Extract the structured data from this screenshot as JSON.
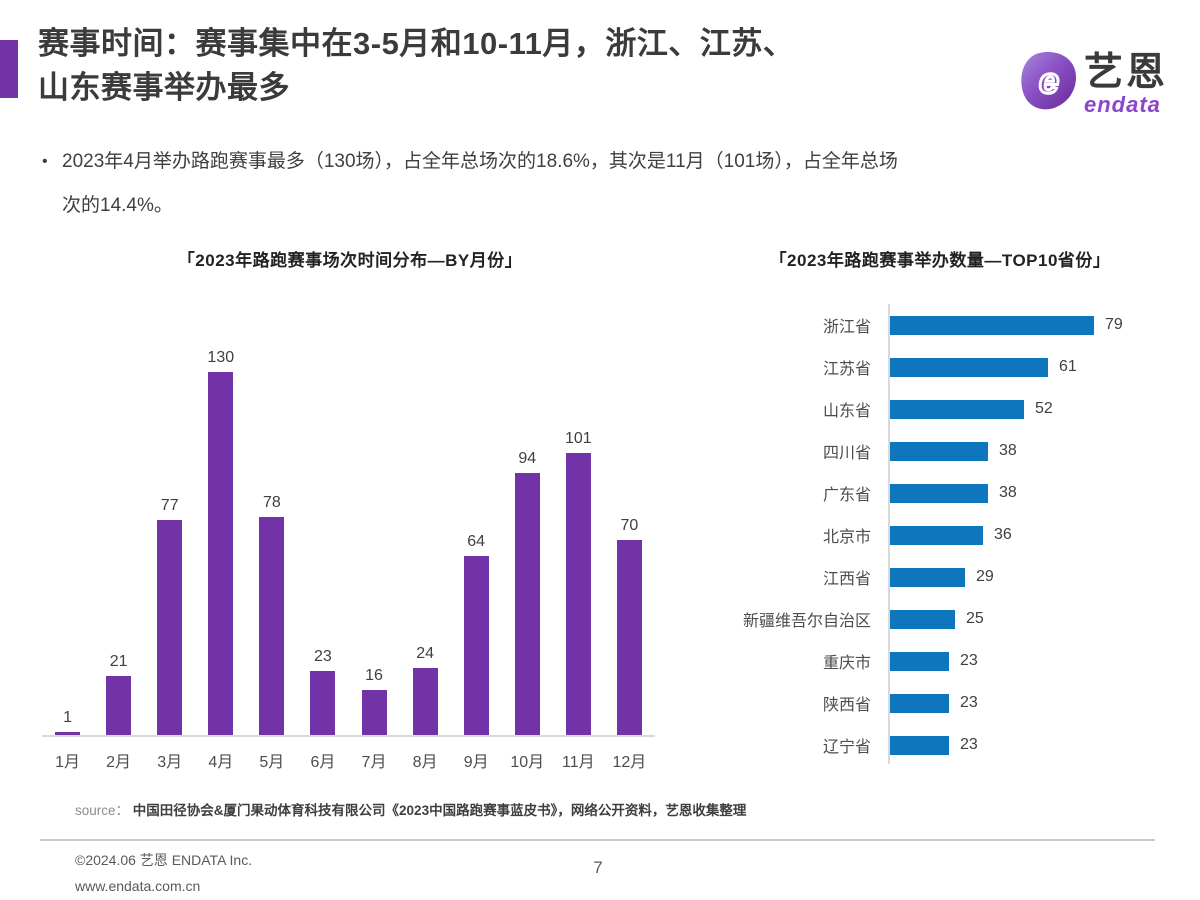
{
  "colors": {
    "accent_purple": "#7233A6",
    "bar_purple": "#7233A6",
    "bar_blue": "#0E76BC",
    "brand_purple": "#8B45C8",
    "axis_gray": "#D9D9D9"
  },
  "header": {
    "title_line1": "赛事时间：赛事集中在3-5月和10-11月，浙江、江苏、",
    "title_line2": "山东赛事举办最多",
    "logo": {
      "letter": "e",
      "brand_cn": "艺恩",
      "brand_en": "endata"
    }
  },
  "bullet": {
    "marker": "•",
    "line1": "2023年4月举办路跑赛事最多（130场），占全年总场次的18.6%，其次是11月（101场），占全年总场",
    "line2": "次的14.4%。"
  },
  "chart_data": [
    {
      "type": "bar",
      "title": "「2023年路跑赛事场次时间分布—BY月份」",
      "categories": [
        "1月",
        "2月",
        "3月",
        "4月",
        "5月",
        "6月",
        "7月",
        "8月",
        "9月",
        "10月",
        "11月",
        "12月"
      ],
      "values": [
        1,
        21,
        77,
        130,
        78,
        23,
        16,
        24,
        64,
        94,
        101,
        70
      ],
      "bar_color": "#7233A6",
      "ylim": [
        0,
        130
      ],
      "grid": false,
      "legend": "none",
      "data_labels": true
    },
    {
      "type": "bar-horizontal",
      "title": "「2023年路跑赛事举办数量—TOP10省份」",
      "categories": [
        "浙江省",
        "江苏省",
        "山东省",
        "四川省",
        "广东省",
        "北京市",
        "江西省",
        "新疆维吾尔自治区",
        "重庆市",
        "陕西省",
        "辽宁省"
      ],
      "values": [
        79,
        61,
        52,
        38,
        38,
        36,
        29,
        25,
        23,
        23,
        23
      ],
      "bar_color": "#0E76BC",
      "xlim": [
        0,
        79
      ],
      "grid": false,
      "legend": "none",
      "data_labels": true
    }
  ],
  "source": {
    "label": "source：",
    "text": "中国田径协会&厦门果动体育科技有限公司《2023中国路跑赛事蓝皮书》，网络公开资料，艺恩收集整理"
  },
  "footer": {
    "copyright": "©2024.06 艺恩 ENDATA Inc.",
    "website": "www.endata.com.cn",
    "page_number": "7"
  }
}
